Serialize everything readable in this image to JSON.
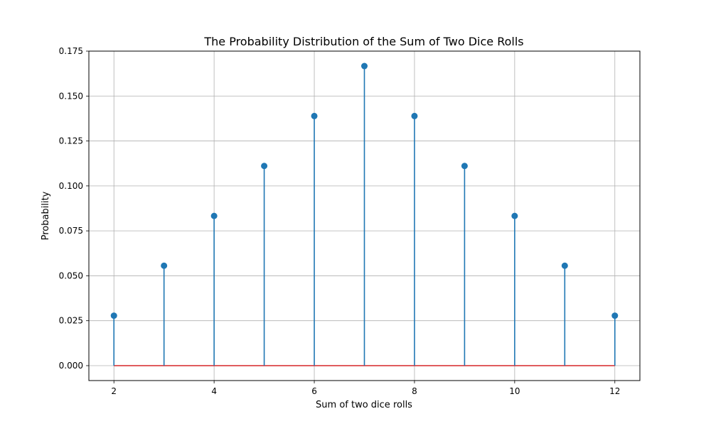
{
  "chart_data": {
    "type": "stem",
    "title": "The Probability Distribution of the Sum of Two Dice Rolls",
    "xlabel": "Sum of two dice rolls",
    "ylabel": "Probability",
    "x": [
      2,
      3,
      4,
      5,
      6,
      7,
      8,
      9,
      10,
      11,
      12
    ],
    "values": [
      0.0278,
      0.0556,
      0.0833,
      0.1111,
      0.1389,
      0.1667,
      0.1389,
      0.1111,
      0.0833,
      0.0556,
      0.0278
    ],
    "xlim": [
      1.5,
      12.5
    ],
    "ylim": [
      -0.0083,
      0.175
    ],
    "xticks": [
      2,
      4,
      6,
      8,
      10,
      12
    ],
    "xtick_labels": [
      "2",
      "4",
      "6",
      "8",
      "10",
      "12"
    ],
    "yticks": [
      0,
      0.025,
      0.05,
      0.075,
      0.1,
      0.125,
      0.15,
      0.175
    ],
    "ytick_labels": [
      "0.000",
      "0.025",
      "0.050",
      "0.075",
      "0.100",
      "0.125",
      "0.150",
      "0.175"
    ],
    "grid": true,
    "colors": {
      "stem": "#1f77b4",
      "baseline": "#d62728",
      "grid": "#b0b0b0"
    }
  }
}
